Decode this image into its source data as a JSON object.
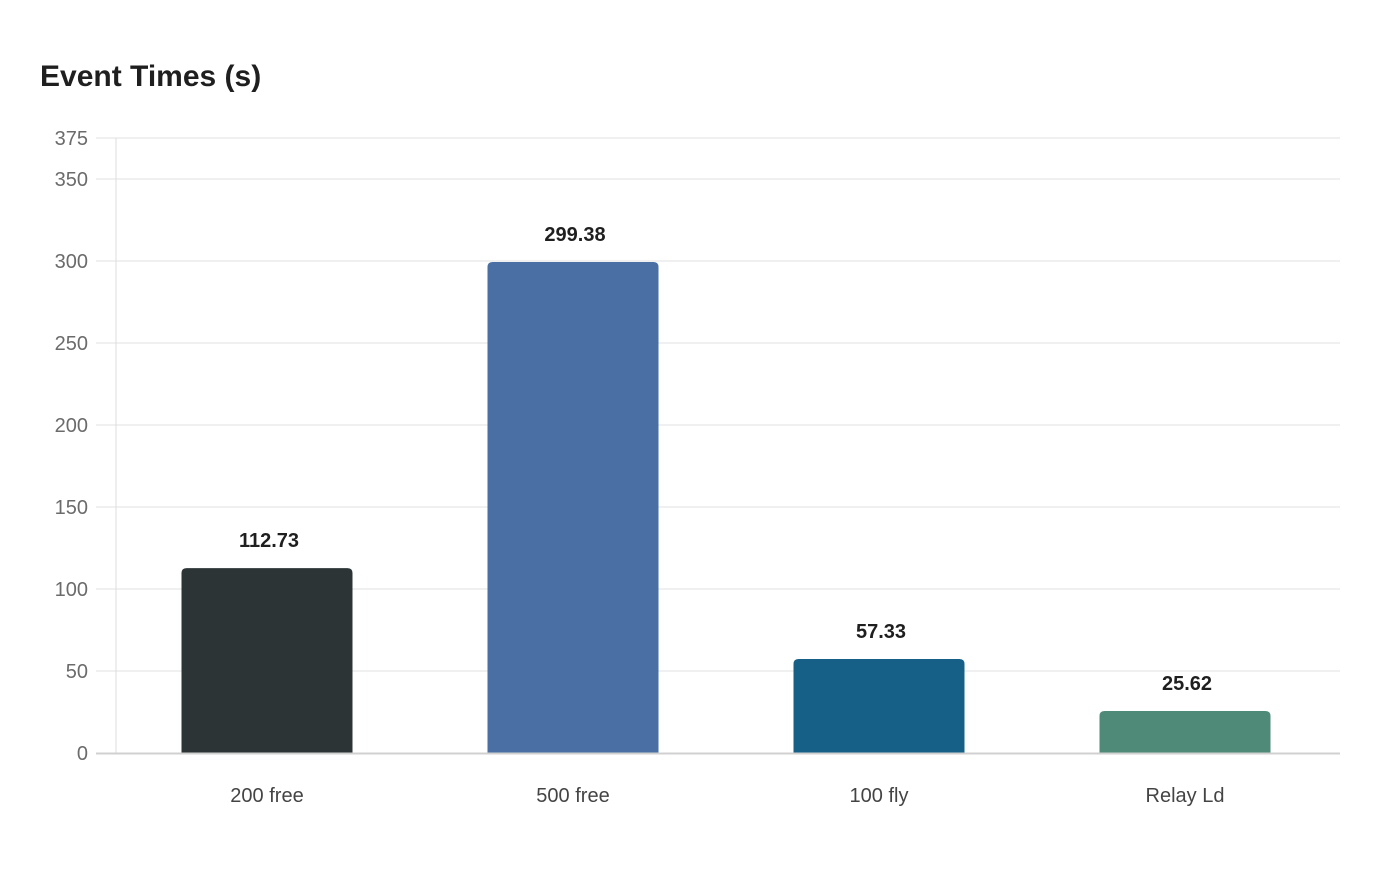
{
  "chart_data": {
    "type": "bar",
    "title": "Event Times (s)",
    "categories": [
      "200 free",
      "500 free",
      "100 fly",
      "Relay Ld"
    ],
    "values": [
      112.73,
      299.38,
      57.33,
      25.62
    ],
    "value_labels": [
      "112.73",
      "299.38",
      "57.33",
      "25.62"
    ],
    "colors": [
      "#2d3436",
      "#4a6fa5",
      "#166088",
      "#4f8a78"
    ],
    "xlabel": "",
    "ylabel": "",
    "ylim": [
      0,
      375
    ],
    "yticks": [
      0,
      50,
      100,
      150,
      200,
      250,
      300,
      350,
      375
    ],
    "grid": true,
    "legend": "none"
  }
}
